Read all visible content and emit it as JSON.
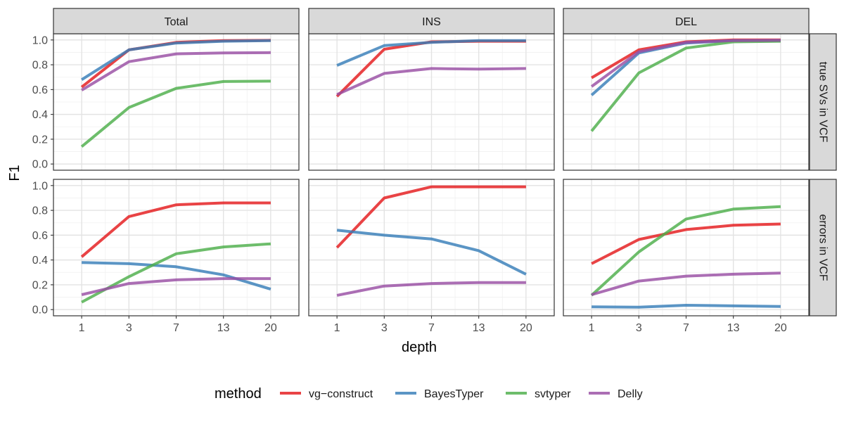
{
  "chart_data": {
    "type": "line",
    "xlabel": "depth",
    "ylabel": "F1",
    "x": [
      1,
      3,
      7,
      13,
      20
    ],
    "x_tick_labels": [
      "1",
      "3",
      "7",
      "13",
      "20"
    ],
    "ylim": [
      -0.05,
      1.05
    ],
    "y_ticks": [
      0.0,
      0.2,
      0.4,
      0.6,
      0.8,
      1.0
    ],
    "y_tick_labels": [
      "0.0",
      "0.2",
      "0.4",
      "0.6",
      "0.8",
      "1.0"
    ],
    "columns": [
      "Total",
      "INS",
      "DEL"
    ],
    "rows": [
      "true SVs in VCF",
      "errors in VCF"
    ],
    "grid": true,
    "legend": {
      "title": "method",
      "placement": "bottom",
      "entries": [
        "vg−construct",
        "BayesTyper",
        "svtyper",
        "Delly"
      ]
    },
    "colors": {
      "vg−construct": "#E41A1C",
      "BayesTyper": "#377EB8",
      "svtyper": "#4DAF4A",
      "Delly": "#984EA3"
    },
    "panels": [
      {
        "column": "Total",
        "row": "true SVs in VCF",
        "series": [
          {
            "name": "vg−construct",
            "values": [
              0.62,
              0.92,
              0.98,
              0.995,
              0.997
            ]
          },
          {
            "name": "BayesTyper",
            "values": [
              0.68,
              0.92,
              0.975,
              0.99,
              0.995
            ]
          },
          {
            "name": "svtyper",
            "values": [
              0.14,
              0.455,
              0.61,
              0.665,
              0.668
            ]
          },
          {
            "name": "Delly",
            "values": [
              0.595,
              0.825,
              0.888,
              0.895,
              0.898
            ]
          }
        ]
      },
      {
        "column": "INS",
        "row": "true SVs in VCF",
        "series": [
          {
            "name": "vg−construct",
            "values": [
              0.545,
              0.925,
              0.985,
              0.99,
              0.99
            ]
          },
          {
            "name": "BayesTyper",
            "values": [
              0.795,
              0.955,
              0.98,
              0.995,
              0.995
            ]
          },
          {
            "name": "Delly",
            "values": [
              0.56,
              0.73,
              0.77,
              0.765,
              0.77
            ]
          }
        ]
      },
      {
        "column": "DEL",
        "row": "true SVs in VCF",
        "series": [
          {
            "name": "vg−construct",
            "values": [
              0.695,
              0.92,
              0.985,
              1.0,
              1.0
            ]
          },
          {
            "name": "BayesTyper",
            "values": [
              0.555,
              0.895,
              0.975,
              0.995,
              0.995
            ]
          },
          {
            "name": "svtyper",
            "values": [
              0.265,
              0.735,
              0.935,
              0.985,
              0.99
            ]
          },
          {
            "name": "Delly",
            "values": [
              0.625,
              0.905,
              0.98,
              0.995,
              0.997
            ]
          }
        ]
      },
      {
        "column": "Total",
        "row": "errors in VCF",
        "series": [
          {
            "name": "vg−construct",
            "values": [
              0.425,
              0.75,
              0.845,
              0.86,
              0.86
            ]
          },
          {
            "name": "BayesTyper",
            "values": [
              0.38,
              0.37,
              0.345,
              0.28,
              0.165
            ]
          },
          {
            "name": "svtyper",
            "values": [
              0.06,
              0.265,
              0.45,
              0.505,
              0.53
            ]
          },
          {
            "name": "Delly",
            "values": [
              0.12,
              0.21,
              0.24,
              0.25,
              0.25
            ]
          }
        ]
      },
      {
        "column": "INS",
        "row": "errors in VCF",
        "series": [
          {
            "name": "vg−construct",
            "values": [
              0.5,
              0.9,
              0.99,
              0.99,
              0.99
            ]
          },
          {
            "name": "BayesTyper",
            "values": [
              0.64,
              0.6,
              0.57,
              0.475,
              0.285
            ]
          },
          {
            "name": "Delly",
            "values": [
              0.115,
              0.19,
              0.21,
              0.218,
              0.218
            ]
          }
        ]
      },
      {
        "column": "DEL",
        "row": "errors in VCF",
        "series": [
          {
            "name": "vg−construct",
            "values": [
              0.37,
              0.565,
              0.645,
              0.68,
              0.69
            ]
          },
          {
            "name": "BayesTyper",
            "values": [
              0.022,
              0.02,
              0.035,
              0.03,
              0.025
            ]
          },
          {
            "name": "svtyper",
            "values": [
              0.115,
              0.465,
              0.73,
              0.81,
              0.83
            ]
          },
          {
            "name": "Delly",
            "values": [
              0.12,
              0.23,
              0.27,
              0.285,
              0.295
            ]
          }
        ]
      }
    ]
  }
}
